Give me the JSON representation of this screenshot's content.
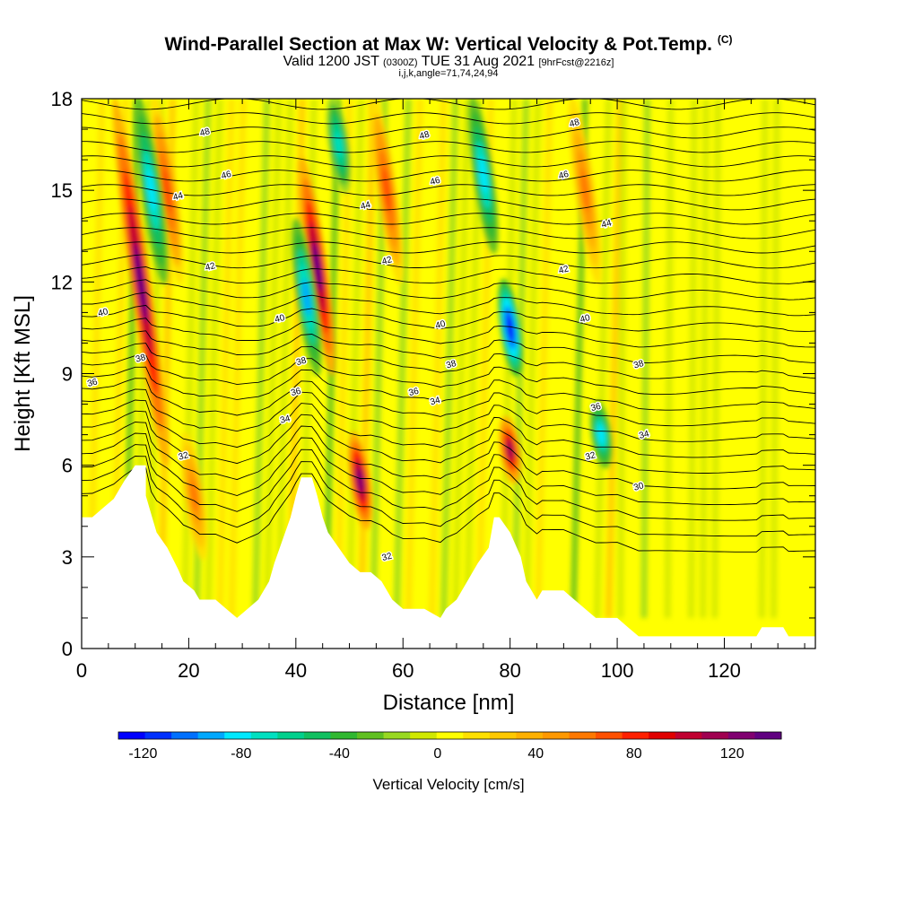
{
  "title": {
    "main": "Wind-Parallel Section at Max W: Vertical Velocity & Pot.Temp.",
    "copyright": "(C)",
    "valid_prefix": "Valid 1200 JST",
    "valid_utc": "(0300Z)",
    "valid_date": "TUE 31 Aug 2021",
    "forecast": "[9hrFcst@2216z]",
    "indices": "i,j,k,angle=71,74,24,94"
  },
  "chart_data": {
    "type": "heatmap",
    "xlabel": "Distance [nm]",
    "ylabel": "Height [Kft MSL]",
    "xlim": [
      0,
      137
    ],
    "ylim": [
      0,
      18
    ],
    "x_ticks": [
      0,
      20,
      40,
      60,
      80,
      100,
      120
    ],
    "y_ticks": [
      0,
      3,
      6,
      9,
      12,
      15,
      18
    ],
    "colorbar": {
      "label": "Vertical Velocity [cm/s]",
      "ticks": [
        -120,
        -80,
        -40,
        0,
        40,
        80,
        120
      ],
      "range": [
        -130,
        140
      ],
      "colors": [
        "#0000ff",
        "#0030ff",
        "#0070ff",
        "#00a8ff",
        "#00e8ff",
        "#00e0c0",
        "#00d08c",
        "#10c060",
        "#30b830",
        "#60c020",
        "#98d820",
        "#d0e800",
        "#ffff00",
        "#ffe000",
        "#ffc800",
        "#ffb000",
        "#ff9800",
        "#ff7800",
        "#ff5000",
        "#ff2000",
        "#e00000",
        "#c00030",
        "#a00050",
        "#800070",
        "#600080"
      ]
    },
    "updraft_cores": [
      {
        "x": 11,
        "y_bottom": 6,
        "y_top": 18,
        "peak_w": 130
      },
      {
        "x": 16,
        "y_bottom": 12,
        "y_top": 18,
        "peak_w": 70
      },
      {
        "x": 21,
        "y_bottom": 3,
        "y_top": 7,
        "peak_w": 60
      },
      {
        "x": 44,
        "y_bottom": 9,
        "y_top": 16,
        "peak_w": 130
      },
      {
        "x": 52,
        "y_bottom": 4,
        "y_top": 7,
        "peak_w": 120
      },
      {
        "x": 57,
        "y_bottom": 12,
        "y_top": 18,
        "peak_w": 70
      },
      {
        "x": 80,
        "y_bottom": 5.5,
        "y_top": 7.5,
        "peak_w": 110
      },
      {
        "x": 94,
        "y_bottom": 12,
        "y_top": 18,
        "peak_w": 60
      }
    ],
    "downdraft_cores": [
      {
        "x": 13,
        "y_bottom": 12,
        "y_top": 18,
        "peak_w": -80
      },
      {
        "x": 42,
        "y_bottom": 9,
        "y_top": 14,
        "peak_w": -90
      },
      {
        "x": 48,
        "y_bottom": 15,
        "y_top": 18,
        "peak_w": -70
      },
      {
        "x": 80,
        "y_bottom": 9,
        "y_top": 12,
        "peak_w": -120
      },
      {
        "x": 75,
        "y_bottom": 13,
        "y_top": 18,
        "peak_w": -80
      },
      {
        "x": 97,
        "y_bottom": 6,
        "y_top": 8,
        "peak_w": -80
      }
    ],
    "theta_contours": {
      "units_note": "potential temperature labels as printed",
      "labels": [
        {
          "value": "48",
          "x": 23,
          "y": 16.9
        },
        {
          "value": "48",
          "x": 64,
          "y": 16.8
        },
        {
          "value": "48",
          "x": 92,
          "y": 17.2
        },
        {
          "value": "46",
          "x": 27,
          "y": 15.5
        },
        {
          "value": "46",
          "x": 66,
          "y": 15.3
        },
        {
          "value": "46",
          "x": 90,
          "y": 15.5
        },
        {
          "value": "44",
          "x": 18,
          "y": 14.8
        },
        {
          "value": "44",
          "x": 53,
          "y": 14.5
        },
        {
          "value": "44",
          "x": 98,
          "y": 13.9
        },
        {
          "value": "42",
          "x": 24,
          "y": 12.5
        },
        {
          "value": "42",
          "x": 57,
          "y": 12.7
        },
        {
          "value": "42",
          "x": 90,
          "y": 12.4
        },
        {
          "value": "40",
          "x": 4,
          "y": 11.0
        },
        {
          "value": "40",
          "x": 37,
          "y": 10.8
        },
        {
          "value": "40",
          "x": 67,
          "y": 10.6
        },
        {
          "value": "40",
          "x": 94,
          "y": 10.8
        },
        {
          "value": "38",
          "x": 11,
          "y": 9.5
        },
        {
          "value": "38",
          "x": 41,
          "y": 9.4
        },
        {
          "value": "38",
          "x": 69,
          "y": 9.3
        },
        {
          "value": "38",
          "x": 104,
          "y": 9.3
        },
        {
          "value": "36",
          "x": 2,
          "y": 8.7
        },
        {
          "value": "36",
          "x": 40,
          "y": 8.4
        },
        {
          "value": "36",
          "x": 62,
          "y": 8.4
        },
        {
          "value": "36",
          "x": 96,
          "y": 7.9
        },
        {
          "value": "34",
          "x": 38,
          "y": 7.5
        },
        {
          "value": "34",
          "x": 66,
          "y": 8.1
        },
        {
          "value": "34",
          "x": 105,
          "y": 7.0
        },
        {
          "value": "32",
          "x": 19,
          "y": 6.3
        },
        {
          "value": "32",
          "x": 57,
          "y": 3.0
        },
        {
          "value": "32",
          "x": 95,
          "y": 6.3
        },
        {
          "value": "30",
          "x": 104,
          "y": 5.3
        }
      ]
    },
    "terrain": [
      [
        0,
        4.3
      ],
      [
        2,
        4.3
      ],
      [
        4,
        4.6
      ],
      [
        6,
        4.9
      ],
      [
        8,
        5.5
      ],
      [
        10,
        6.0
      ],
      [
        12,
        6.0
      ],
      [
        12,
        5.0
      ],
      [
        13,
        4.4
      ],
      [
        14,
        3.8
      ],
      [
        16,
        3.3
      ],
      [
        18,
        2.6
      ],
      [
        19,
        2.2
      ],
      [
        21,
        1.9
      ],
      [
        22,
        1.6
      ],
      [
        25,
        1.6
      ],
      [
        27,
        1.3
      ],
      [
        29,
        1.0
      ],
      [
        31,
        1.3
      ],
      [
        33,
        1.6
      ],
      [
        35,
        2.2
      ],
      [
        36,
        2.8
      ],
      [
        37,
        3.3
      ],
      [
        39,
        4.3
      ],
      [
        40,
        5.0
      ],
      [
        41,
        5.6
      ],
      [
        43,
        5.6
      ],
      [
        44,
        5.0
      ],
      [
        45,
        4.3
      ],
      [
        46,
        3.8
      ],
      [
        48,
        3.3
      ],
      [
        50,
        2.8
      ],
      [
        52,
        2.5
      ],
      [
        54,
        2.5
      ],
      [
        56,
        2.2
      ],
      [
        58,
        1.6
      ],
      [
        60,
        1.3
      ],
      [
        64,
        1.3
      ],
      [
        67,
        1.0
      ],
      [
        68,
        1.3
      ],
      [
        70,
        1.6
      ],
      [
        72,
        2.2
      ],
      [
        74,
        2.8
      ],
      [
        76,
        3.3
      ],
      [
        77,
        4.3
      ],
      [
        78,
        4.3
      ],
      [
        80,
        3.8
      ],
      [
        82,
        3.0
      ],
      [
        83,
        2.2
      ],
      [
        85,
        1.6
      ],
      [
        86,
        1.9
      ],
      [
        90,
        1.9
      ],
      [
        92,
        1.6
      ],
      [
        94,
        1.3
      ],
      [
        96,
        1.0
      ],
      [
        100,
        1.0
      ],
      [
        102,
        0.7
      ],
      [
        104,
        0.4
      ],
      [
        110,
        0.4
      ],
      [
        120,
        0.4
      ],
      [
        126,
        0.4
      ],
      [
        127,
        0.7
      ],
      [
        131,
        0.7
      ],
      [
        132,
        0.4
      ],
      [
        137,
        0.4
      ]
    ]
  }
}
